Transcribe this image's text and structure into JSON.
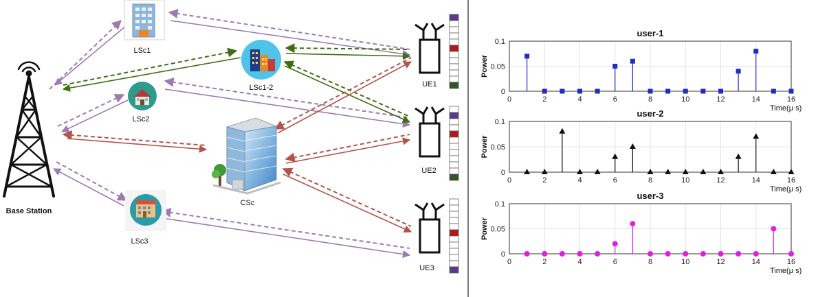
{
  "diagram": {
    "base_station": {
      "label": "Base Station"
    },
    "cells": [
      {
        "id": "lsc1",
        "label": "LSc1"
      },
      {
        "id": "lsc12",
        "label": "LSc1-2"
      },
      {
        "id": "lsc2",
        "label": "LSc2"
      },
      {
        "id": "csc",
        "label": "CSc"
      },
      {
        "id": "lsc3",
        "label": "LSc3"
      }
    ],
    "ues": [
      {
        "id": "ue1",
        "label": "UE1"
      },
      {
        "id": "ue2",
        "label": "UE2"
      },
      {
        "id": "ue3",
        "label": "UE3"
      }
    ],
    "colors": {
      "purple": "#9b7bb1",
      "green": "#3f6d12",
      "red": "#b5524c",
      "slot_purple": "#5b3a8c",
      "slot_red": "#b11a1a",
      "slot_green": "#33552a"
    }
  },
  "chart_data": [
    {
      "type": "stem",
      "title": "user-1",
      "ylabel": "Power",
      "xlabel": "Time(μ s)",
      "xlim": [
        0,
        16
      ],
      "ylim": [
        0,
        0.1
      ],
      "xticks": [
        "0",
        "2",
        "4",
        "6",
        "8",
        "10",
        "12",
        "14",
        "16"
      ],
      "yticks": [
        "0",
        "0.05",
        "0.1"
      ],
      "marker": "square",
      "color": "#1f2fbf",
      "x": [
        1,
        2,
        3,
        4,
        5,
        6,
        7,
        8,
        9,
        10,
        11,
        12,
        13,
        14,
        15,
        16
      ],
      "y": [
        0.07,
        0,
        0,
        0,
        0,
        0.05,
        0.06,
        0,
        0,
        0,
        0,
        0,
        0.04,
        0.08,
        0,
        0
      ]
    },
    {
      "type": "stem",
      "title": "user-2",
      "ylabel": "Power",
      "xlabel": "Time(μ s)",
      "xlim": [
        0,
        16
      ],
      "ylim": [
        0,
        0.1
      ],
      "xticks": [
        "0",
        "2",
        "4",
        "6",
        "8",
        "10",
        "12",
        "14",
        "16"
      ],
      "yticks": [
        "0",
        "0.05",
        "0.1"
      ],
      "marker": "triangle",
      "color": "#111111",
      "x": [
        1,
        2,
        3,
        4,
        5,
        6,
        7,
        8,
        9,
        10,
        11,
        12,
        13,
        14,
        15,
        16
      ],
      "y": [
        0,
        0,
        0.08,
        0,
        0,
        0.03,
        0.05,
        0,
        0,
        0,
        0,
        0,
        0.03,
        0.07,
        0,
        0
      ]
    },
    {
      "type": "stem",
      "title": "user-3",
      "ylabel": "Power",
      "xlabel": "Time(μ s)",
      "xlim": [
        0,
        16
      ],
      "ylim": [
        0,
        0.1
      ],
      "xticks": [
        "0",
        "2",
        "4",
        "6",
        "8",
        "10",
        "12",
        "14",
        "16"
      ],
      "yticks": [
        "0",
        "0.05",
        "0.1"
      ],
      "marker": "circle",
      "color": "#e21ee2",
      "x": [
        1,
        2,
        3,
        4,
        5,
        6,
        7,
        8,
        9,
        10,
        11,
        12,
        13,
        14,
        15,
        16
      ],
      "y": [
        0,
        0,
        0,
        0,
        0,
        0.02,
        0.06,
        0,
        0,
        0,
        0,
        0,
        0,
        0,
        0.05,
        0
      ]
    }
  ]
}
